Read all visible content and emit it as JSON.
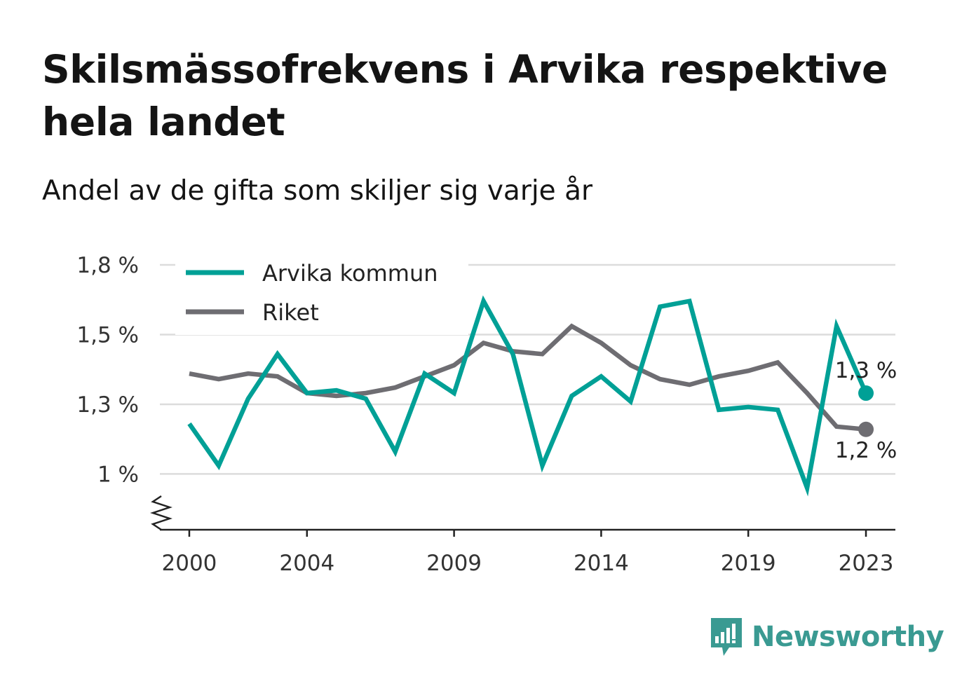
{
  "title": "Skilsmässofrekvens i Arvika respektive hela landet",
  "subtitle": "Andel av de gifta som skiljer sig varje år",
  "brand": {
    "name": "Newsworthy",
    "icon": "bar-chart-speech-icon",
    "color": "#3a9a92"
  },
  "chart_data": {
    "type": "line",
    "title": "Skilsmässofrekvens i Arvika respektive hela landet",
    "subtitle": "Andel av de gifta som skiljer sig varje år",
    "xlabel": "",
    "ylabel": "",
    "x_ticks": [
      "2000",
      "2004",
      "2009",
      "2014",
      "2019",
      "2023"
    ],
    "y_ticks": [
      "1 %",
      "1,3 %",
      "1,5 %",
      "1,8 %"
    ],
    "y_tick_values": [
      1.0,
      1.25,
      1.5,
      1.75
    ],
    "ylim": [
      0.8,
      1.75
    ],
    "xlim": [
      1999,
      2024
    ],
    "axis_break": true,
    "grid": "horizontal",
    "legend_position": "top-left",
    "x": [
      2000,
      2001,
      2002,
      2003,
      2004,
      2005,
      2006,
      2007,
      2008,
      2009,
      2010,
      2011,
      2012,
      2013,
      2014,
      2015,
      2016,
      2017,
      2018,
      2019,
      2020,
      2021,
      2022,
      2023
    ],
    "series": [
      {
        "name": "Arvika kommun",
        "color": "#00a096",
        "values": [
          1.18,
          1.03,
          1.27,
          1.43,
          1.29,
          1.3,
          1.27,
          1.08,
          1.36,
          1.29,
          1.62,
          1.43,
          1.03,
          1.28,
          1.35,
          1.26,
          1.6,
          1.62,
          1.23,
          1.24,
          1.23,
          0.95,
          1.53,
          1.29
        ],
        "end_label": "1,3 %"
      },
      {
        "name": "Riket",
        "color": "#6e6d72",
        "values": [
          1.36,
          1.34,
          1.36,
          1.35,
          1.29,
          1.28,
          1.29,
          1.31,
          1.35,
          1.39,
          1.47,
          1.44,
          1.43,
          1.53,
          1.47,
          1.39,
          1.34,
          1.32,
          1.35,
          1.37,
          1.4,
          1.29,
          1.17,
          1.16
        ],
        "end_label": "1,2 %"
      }
    ]
  }
}
